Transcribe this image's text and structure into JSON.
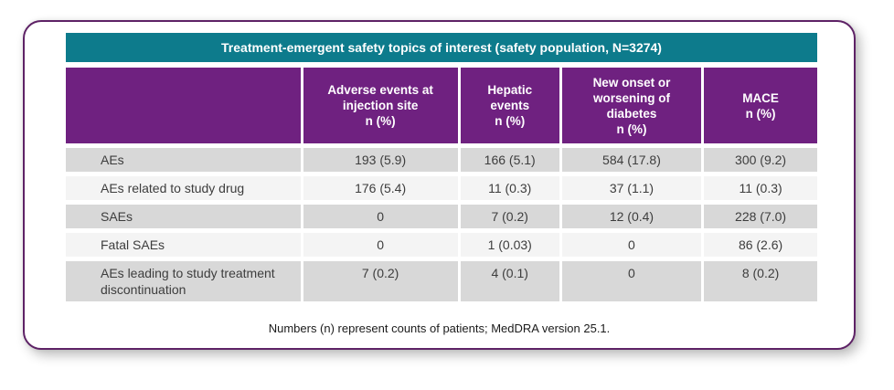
{
  "card": {
    "title": "Treatment-emergent safety topics of interest (safety population, N=3274)",
    "footnote": "Numbers (n) represent counts of patients; MedDRA version 25.1."
  },
  "table": {
    "columns": [
      {
        "label": "",
        "unit": ""
      },
      {
        "label": "Adverse events at injection site",
        "unit": "n (%)"
      },
      {
        "label": "Hepatic events",
        "unit": "n (%)"
      },
      {
        "label": "New onset or worsening of diabetes",
        "unit": "n (%)"
      },
      {
        "label": "MACE",
        "unit": "n (%)"
      }
    ],
    "rows": [
      {
        "label": "AEs",
        "values": [
          "193 (5.9)",
          "166 (5.1)",
          "584 (17.8)",
          "300 (9.2)"
        ]
      },
      {
        "label": "AEs related to study drug",
        "values": [
          "176 (5.4)",
          "11 (0.3)",
          "37 (1.1)",
          "11 (0.3)"
        ]
      },
      {
        "label": "SAEs",
        "values": [
          "0",
          "7 (0.2)",
          "12 (0.4)",
          "228 (7.0)"
        ]
      },
      {
        "label": "Fatal SAEs",
        "values": [
          "0",
          "1 (0.03)",
          "0",
          "86 (2.6)"
        ]
      },
      {
        "label": "AEs leading to study treatment discontinuation",
        "values": [
          "7 (0.2)",
          "4 (0.1)",
          "0",
          "8 (0.2)"
        ]
      }
    ]
  },
  "colors": {
    "title_bar_teal": "#0d7b8c",
    "header_purple": "#6f2180",
    "card_border_purple": "#5e2266",
    "row_gray": "#d8d8d8",
    "row_light": "#f4f4f4",
    "body_text": "#3d3d3d"
  }
}
